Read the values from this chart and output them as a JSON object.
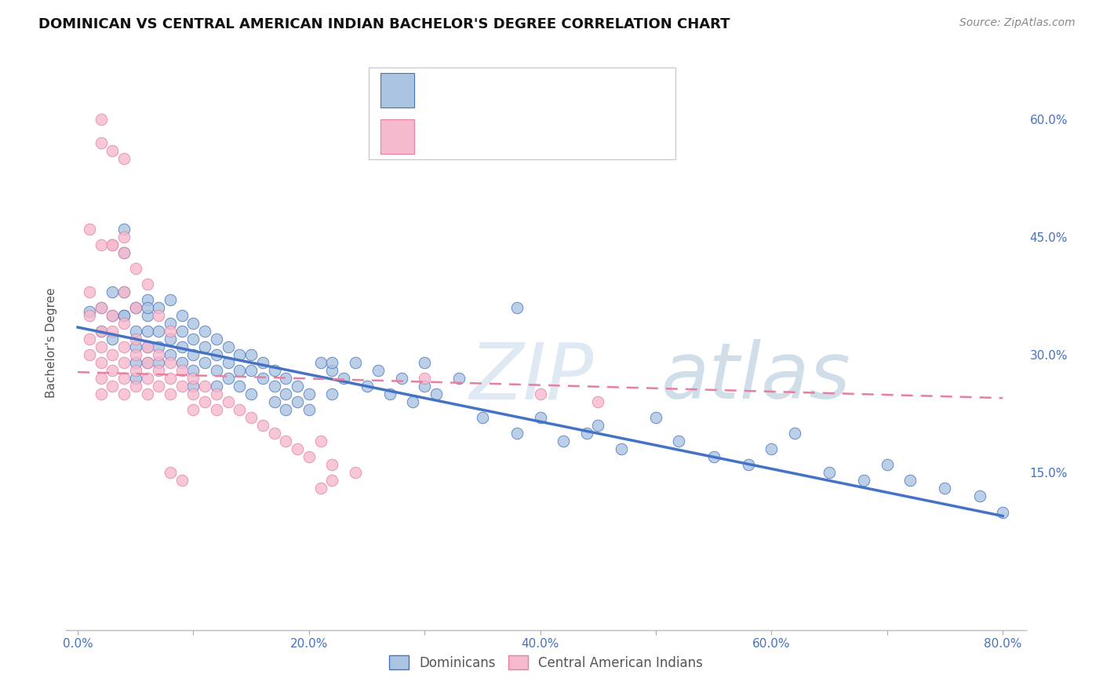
{
  "title": "DOMINICAN VS CENTRAL AMERICAN INDIAN BACHELOR'S DEGREE CORRELATION CHART",
  "source": "Source: ZipAtlas.com",
  "ylabel": "Bachelor's Degree",
  "watermark": "ZIPatlas",
  "blue_color": "#aac4e2",
  "pink_color": "#f5bace",
  "trendline_blue": "#4472c4",
  "trendline_pink": "#e87fa0",
  "x_ticks": [
    0.0,
    0.1,
    0.2,
    0.3,
    0.4,
    0.5,
    0.6,
    0.7,
    0.8
  ],
  "x_tick_labels": [
    "0.0%",
    "",
    "20.0%",
    "",
    "40.0%",
    "",
    "60.0%",
    "",
    "80.0%"
  ],
  "y_ticks": [
    0.0,
    0.15,
    0.3,
    0.45,
    0.6
  ],
  "y_tick_labels_right": [
    "",
    "15.0%",
    "30.0%",
    "45.0%",
    "60.0%"
  ],
  "xlim": [
    -0.01,
    0.82
  ],
  "ylim": [
    -0.05,
    0.68
  ],
  "blue_scatter_x": [
    0.01,
    0.02,
    0.02,
    0.03,
    0.03,
    0.03,
    0.04,
    0.04,
    0.04,
    0.04,
    0.05,
    0.05,
    0.05,
    0.05,
    0.05,
    0.06,
    0.06,
    0.06,
    0.06,
    0.06,
    0.07,
    0.07,
    0.07,
    0.07,
    0.08,
    0.08,
    0.08,
    0.08,
    0.09,
    0.09,
    0.09,
    0.09,
    0.1,
    0.1,
    0.1,
    0.1,
    0.1,
    0.11,
    0.11,
    0.11,
    0.12,
    0.12,
    0.12,
    0.12,
    0.13,
    0.13,
    0.13,
    0.14,
    0.14,
    0.14,
    0.15,
    0.15,
    0.15,
    0.16,
    0.16,
    0.17,
    0.17,
    0.17,
    0.18,
    0.18,
    0.18,
    0.19,
    0.19,
    0.2,
    0.2,
    0.21,
    0.22,
    0.22,
    0.23,
    0.24,
    0.25,
    0.26,
    0.27,
    0.28,
    0.29,
    0.3,
    0.31,
    0.33,
    0.35,
    0.38,
    0.4,
    0.42,
    0.44,
    0.45,
    0.47,
    0.5,
    0.52,
    0.55,
    0.58,
    0.6,
    0.62,
    0.65,
    0.68,
    0.7,
    0.72,
    0.75,
    0.78,
    0.8,
    0.3,
    0.22,
    0.04,
    0.05,
    0.06,
    0.38
  ],
  "blue_scatter_y": [
    0.355,
    0.36,
    0.33,
    0.38,
    0.35,
    0.32,
    0.46,
    0.43,
    0.38,
    0.35,
    0.36,
    0.33,
    0.31,
    0.29,
    0.27,
    0.37,
    0.35,
    0.33,
    0.31,
    0.29,
    0.36,
    0.33,
    0.31,
    0.29,
    0.37,
    0.34,
    0.32,
    0.3,
    0.35,
    0.33,
    0.31,
    0.29,
    0.34,
    0.32,
    0.3,
    0.28,
    0.26,
    0.33,
    0.31,
    0.29,
    0.32,
    0.3,
    0.28,
    0.26,
    0.31,
    0.29,
    0.27,
    0.3,
    0.28,
    0.26,
    0.3,
    0.28,
    0.25,
    0.29,
    0.27,
    0.28,
    0.26,
    0.24,
    0.27,
    0.25,
    0.23,
    0.26,
    0.24,
    0.25,
    0.23,
    0.29,
    0.28,
    0.25,
    0.27,
    0.29,
    0.26,
    0.28,
    0.25,
    0.27,
    0.24,
    0.26,
    0.25,
    0.27,
    0.22,
    0.2,
    0.22,
    0.19,
    0.2,
    0.21,
    0.18,
    0.22,
    0.19,
    0.17,
    0.16,
    0.18,
    0.2,
    0.15,
    0.14,
    0.16,
    0.14,
    0.13,
    0.12,
    0.1,
    0.29,
    0.29,
    0.35,
    0.36,
    0.36,
    0.36
  ],
  "pink_scatter_x": [
    0.01,
    0.01,
    0.01,
    0.01,
    0.02,
    0.02,
    0.02,
    0.02,
    0.02,
    0.02,
    0.03,
    0.03,
    0.03,
    0.03,
    0.03,
    0.04,
    0.04,
    0.04,
    0.04,
    0.04,
    0.05,
    0.05,
    0.05,
    0.05,
    0.06,
    0.06,
    0.06,
    0.06,
    0.07,
    0.07,
    0.07,
    0.08,
    0.08,
    0.08,
    0.09,
    0.09,
    0.1,
    0.1,
    0.1,
    0.11,
    0.11,
    0.12,
    0.12,
    0.13,
    0.14,
    0.15,
    0.16,
    0.17,
    0.18,
    0.19,
    0.2,
    0.21,
    0.22,
    0.24,
    0.03,
    0.04,
    0.05,
    0.06,
    0.07,
    0.08,
    0.01,
    0.02,
    0.03,
    0.04,
    0.21,
    0.22,
    0.02,
    0.03,
    0.04,
    0.02,
    0.04,
    0.05,
    0.08,
    0.09,
    0.3,
    0.4,
    0.45
  ],
  "pink_scatter_y": [
    0.38,
    0.35,
    0.32,
    0.3,
    0.36,
    0.33,
    0.31,
    0.29,
    0.27,
    0.25,
    0.35,
    0.33,
    0.3,
    0.28,
    0.26,
    0.34,
    0.31,
    0.29,
    0.27,
    0.25,
    0.32,
    0.3,
    0.28,
    0.26,
    0.31,
    0.29,
    0.27,
    0.25,
    0.3,
    0.28,
    0.26,
    0.29,
    0.27,
    0.25,
    0.28,
    0.26,
    0.27,
    0.25,
    0.23,
    0.26,
    0.24,
    0.25,
    0.23,
    0.24,
    0.23,
    0.22,
    0.21,
    0.2,
    0.19,
    0.18,
    0.17,
    0.19,
    0.16,
    0.15,
    0.44,
    0.43,
    0.41,
    0.39,
    0.35,
    0.33,
    0.46,
    0.44,
    0.44,
    0.45,
    0.13,
    0.14,
    0.57,
    0.56,
    0.55,
    0.6,
    0.38,
    0.36,
    0.15,
    0.14,
    0.27,
    0.25,
    0.24
  ],
  "blue_trend_x0": 0.0,
  "blue_trend_x1": 0.8,
  "blue_trend_y0": 0.335,
  "blue_trend_y1": 0.095,
  "pink_trend_x0": 0.0,
  "pink_trend_x1": 0.8,
  "pink_trend_y0": 0.278,
  "pink_trend_y1": 0.245,
  "legend_labels": [
    "Dominicans",
    "Central American Indians"
  ],
  "background_color": "#ffffff",
  "grid_color": "#cccccc",
  "text_color_blue": "#4472c4",
  "text_color_dark": "#333333",
  "watermark_color": "#c5d8ec",
  "title_fontsize": 13,
  "source_fontsize": 10,
  "tick_fontsize": 11,
  "ylabel_fontsize": 11
}
